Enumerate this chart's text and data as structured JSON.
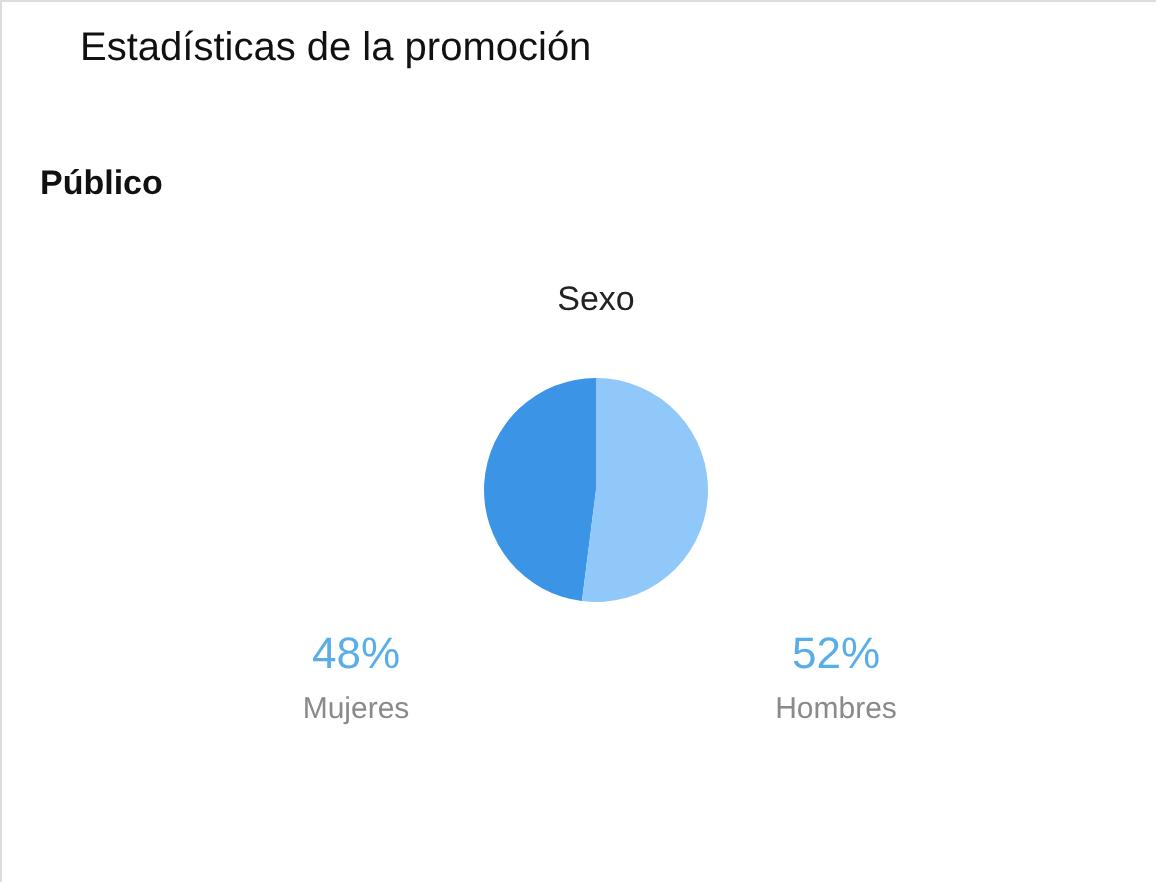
{
  "chart_data": {
    "type": "pie",
    "title": "Sexo",
    "annotations": [
      "Estadísticas de la promoción",
      "Público"
    ],
    "categories": [
      "Mujeres",
      "Hombres"
    ],
    "values": [
      48,
      52
    ],
    "colors": [
      "#3b94e6",
      "#90c8fa"
    ],
    "value_labels": [
      "48%",
      "52%"
    ]
  }
}
